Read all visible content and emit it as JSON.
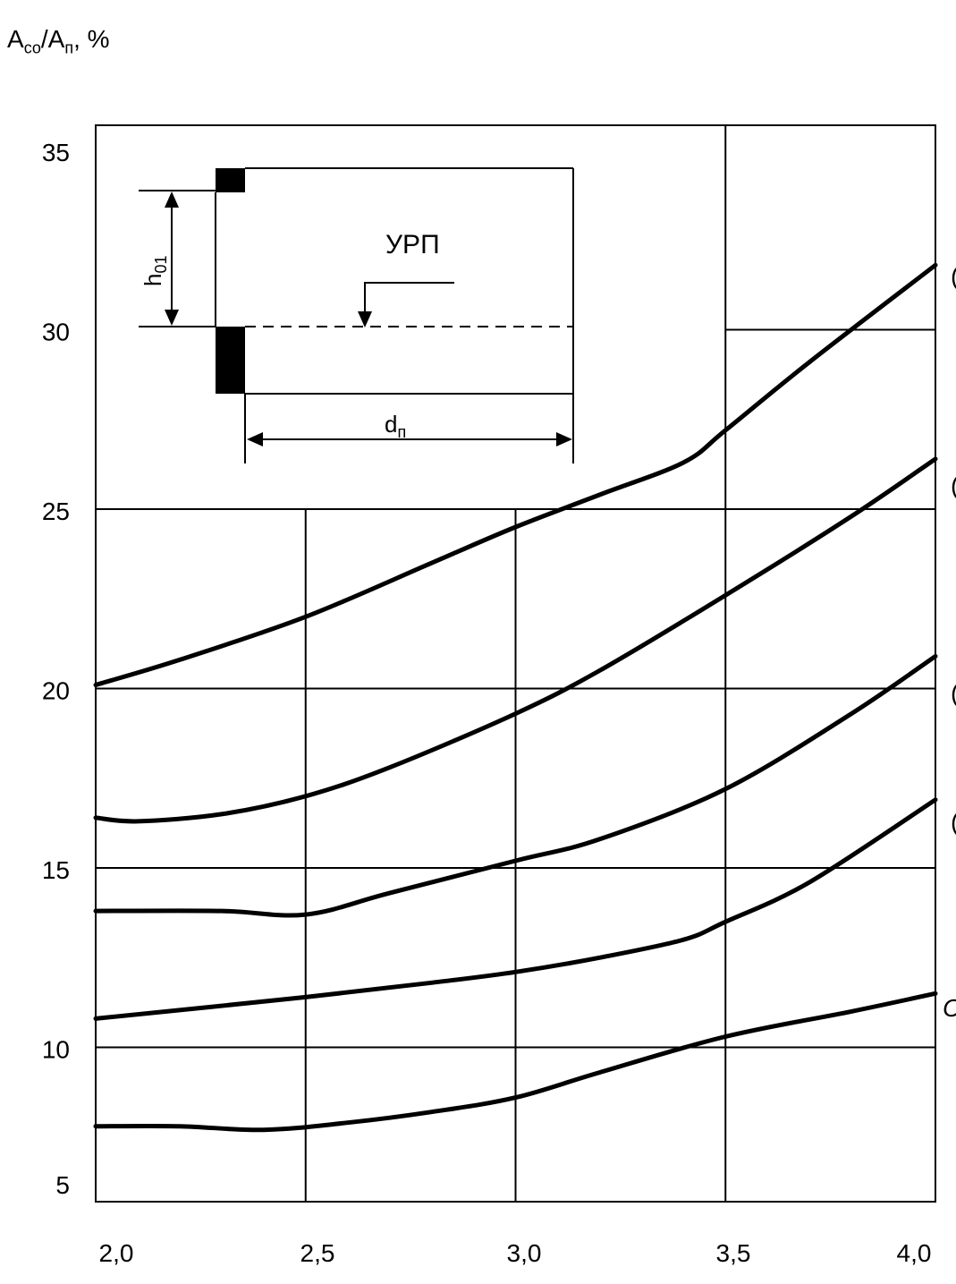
{
  "chart_data": {
    "type": "line",
    "ylabel": {
      "a1": "A",
      "s1": "со",
      "sep": "/A",
      "s2": "п",
      "unit": ", %"
    },
    "xlim": [
      2.0,
      4.0
    ],
    "ylim": [
      5,
      35
    ],
    "x_ticks": [
      "2,0",
      "2,5",
      "3,0",
      "3,5",
      "4,0"
    ],
    "y_ticks": [
      "35",
      "30",
      "25",
      "20",
      "15",
      "10",
      "5"
    ],
    "grid": true,
    "series": [
      {
        "points": [
          [
            2.0,
            20.1
          ],
          [
            2.2,
            20.8
          ],
          [
            2.5,
            22.0
          ],
          [
            2.8,
            23.5
          ],
          [
            3.0,
            24.5
          ],
          [
            3.2,
            25.4
          ],
          [
            3.4,
            26.3
          ],
          [
            3.5,
            27.2
          ],
          [
            3.7,
            29.1
          ],
          [
            4.0,
            31.8
          ]
        ]
      },
      {
        "points": [
          [
            2.0,
            16.4
          ],
          [
            2.1,
            16.3
          ],
          [
            2.3,
            16.5
          ],
          [
            2.5,
            17.0
          ],
          [
            2.7,
            17.8
          ],
          [
            3.0,
            19.3
          ],
          [
            3.2,
            20.5
          ],
          [
            3.5,
            22.6
          ],
          [
            3.8,
            24.8
          ],
          [
            4.0,
            26.4
          ]
        ]
      },
      {
        "points": [
          [
            2.0,
            13.8
          ],
          [
            2.3,
            13.8
          ],
          [
            2.5,
            13.7
          ],
          [
            2.7,
            14.3
          ],
          [
            3.0,
            15.2
          ],
          [
            3.2,
            15.8
          ],
          [
            3.5,
            17.2
          ],
          [
            3.8,
            19.3
          ],
          [
            4.0,
            20.9
          ]
        ]
      },
      {
        "points": [
          [
            2.0,
            10.8
          ],
          [
            2.5,
            11.4
          ],
          [
            2.8,
            11.8
          ],
          [
            3.0,
            12.1
          ],
          [
            3.2,
            12.5
          ],
          [
            3.4,
            13.0
          ],
          [
            3.5,
            13.5
          ],
          [
            3.7,
            14.6
          ],
          [
            4.0,
            16.9
          ]
        ]
      },
      {
        "points": [
          [
            2.0,
            7.8
          ],
          [
            2.2,
            7.8
          ],
          [
            2.4,
            7.7
          ],
          [
            2.6,
            7.9
          ],
          [
            2.8,
            8.2
          ],
          [
            3.0,
            8.6
          ],
          [
            3.2,
            9.3
          ],
          [
            3.5,
            10.3
          ],
          [
            3.8,
            11.0
          ],
          [
            4.0,
            11.5
          ]
        ]
      }
    ],
    "curve_label_glyphs": [
      "(",
      "(",
      "(",
      "(",
      "("
    ],
    "last_curve_label": "С"
  },
  "inset": {
    "title": "УРП",
    "h_label": "h",
    "h_sub": "01",
    "d_label": "d",
    "d_sub": "п"
  }
}
